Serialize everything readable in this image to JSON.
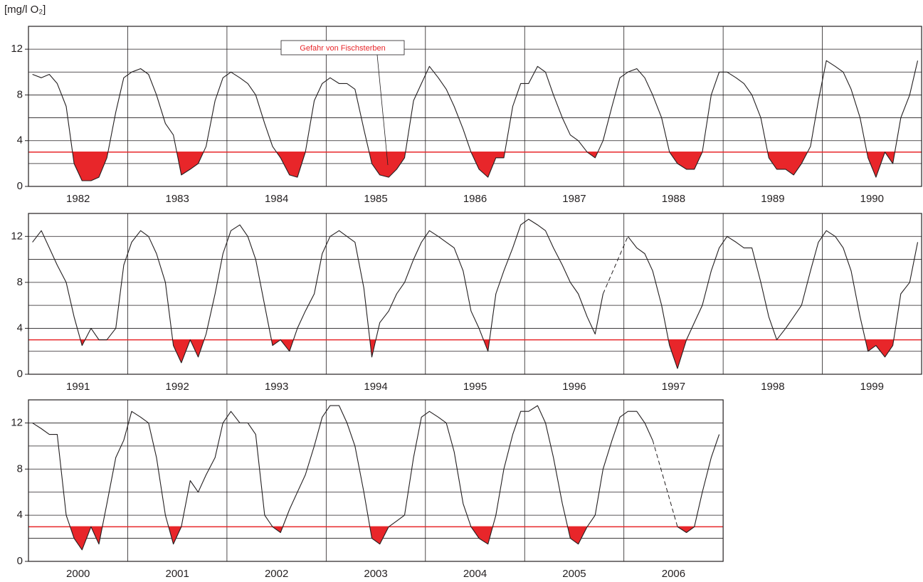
{
  "chart_data": [
    {
      "type": "line",
      "ylabel": "[mg/l O₂]",
      "annotation": "Gefahr von Fischsterben",
      "categories": [
        "1982",
        "1983",
        "1984",
        "1985",
        "1986",
        "1987",
        "1988",
        "1989",
        "1990"
      ],
      "xlim": [
        1982,
        1991
      ],
      "ylim": [
        0,
        14
      ],
      "yticks": [
        0,
        4,
        8,
        12
      ],
      "minor_yticks": [
        2,
        6,
        10
      ],
      "grid": true,
      "threshold": 3,
      "threshold_color": "#e8262a",
      "color": "#231f20",
      "x": [
        1982.04,
        1982.13,
        1982.21,
        1982.29,
        1982.38,
        1982.46,
        1982.54,
        1982.63,
        1982.71,
        1982.79,
        1982.88,
        1982.96,
        1983.04,
        1983.13,
        1983.21,
        1983.29,
        1983.38,
        1983.46,
        1983.54,
        1983.63,
        1983.71,
        1983.79,
        1983.88,
        1983.96,
        1984.04,
        1984.13,
        1984.21,
        1984.29,
        1984.38,
        1984.46,
        1984.54,
        1984.63,
        1984.71,
        1984.79,
        1984.88,
        1984.96,
        1985.04,
        1985.13,
        1985.21,
        1985.29,
        1985.38,
        1985.46,
        1985.54,
        1985.63,
        1985.71,
        1985.79,
        1985.88,
        1985.96,
        1986.04,
        1986.13,
        1986.21,
        1986.29,
        1986.38,
        1986.46,
        1986.54,
        1986.63,
        1986.71,
        1986.79,
        1986.88,
        1986.96,
        1987.04,
        1987.13,
        1987.21,
        1987.29,
        1987.38,
        1987.46,
        1987.54,
        1987.63,
        1987.71,
        1987.79,
        1987.88,
        1987.96,
        1988.04,
        1988.13,
        1988.21,
        1988.29,
        1988.38,
        1988.46,
        1988.54,
        1988.63,
        1988.71,
        1988.79,
        1988.88,
        1988.96,
        1989.04,
        1989.13,
        1989.21,
        1989.29,
        1989.38,
        1989.46,
        1989.54,
        1989.63,
        1989.71,
        1989.79,
        1989.88,
        1989.96,
        1990.04,
        1990.13,
        1990.21,
        1990.29,
        1990.38,
        1990.46,
        1990.54,
        1990.63,
        1990.71,
        1990.79,
        1990.88,
        1990.96
      ],
      "values": [
        9.8,
        9.5,
        9.8,
        9,
        7,
        2,
        0.5,
        0.5,
        0.8,
        2.5,
        6.5,
        9.5,
        10,
        10.3,
        9.8,
        8,
        5.5,
        4.5,
        1,
        1.5,
        2,
        3.5,
        7.5,
        9.5,
        10,
        9.5,
        9,
        8,
        5.5,
        3.5,
        2.5,
        1,
        0.8,
        3,
        7.5,
        9,
        9.5,
        9,
        9,
        8.5,
        5,
        2,
        1,
        0.8,
        1.5,
        2.5,
        7.5,
        9,
        10.5,
        9.5,
        8.5,
        7,
        5,
        3,
        1.5,
        0.8,
        2.5,
        2.5,
        7,
        9,
        9,
        10.5,
        10,
        8,
        6,
        4.5,
        4,
        3,
        2.5,
        4,
        7,
        9.5,
        10,
        10.3,
        9.5,
        8,
        6,
        3,
        2,
        1.5,
        1.5,
        3,
        8,
        10,
        10,
        9.5,
        9,
        8,
        6,
        2.5,
        1.5,
        1.5,
        1,
        2,
        3.5,
        7.5,
        11,
        10.5,
        10,
        8.5,
        6,
        2.5,
        0.8,
        3,
        2,
        6,
        8,
        11
      ]
    },
    {
      "type": "line",
      "categories": [
        "1991",
        "1992",
        "1993",
        "1994",
        "1995",
        "1996",
        "1997",
        "1998",
        "1999"
      ],
      "xlim": [
        1991,
        2000
      ],
      "ylim": [
        0,
        14
      ],
      "yticks": [
        0,
        4,
        8,
        12
      ],
      "minor_yticks": [
        2,
        6,
        10
      ],
      "grid": true,
      "threshold": 3,
      "threshold_color": "#e8262a",
      "color": "#231f20",
      "x": [
        1991.04,
        1991.13,
        1991.21,
        1991.29,
        1991.38,
        1991.46,
        1991.54,
        1991.63,
        1991.71,
        1991.79,
        1991.88,
        1991.96,
        1992.04,
        1992.13,
        1992.21,
        1992.29,
        1992.38,
        1992.46,
        1992.54,
        1992.63,
        1992.71,
        1992.79,
        1992.88,
        1992.96,
        1993.04,
        1993.13,
        1993.21,
        1993.29,
        1993.38,
        1993.46,
        1993.54,
        1993.63,
        1993.71,
        1993.79,
        1993.88,
        1993.96,
        1994.04,
        1994.13,
        1994.21,
        1994.29,
        1994.38,
        1994.46,
        1994.54,
        1994.63,
        1994.71,
        1994.79,
        1994.88,
        1994.96,
        1995.04,
        1995.13,
        1995.21,
        1995.29,
        1995.38,
        1995.46,
        1995.54,
        1995.63,
        1995.71,
        1995.79,
        1995.88,
        1995.96,
        1996.04,
        1996.13,
        1996.21,
        1996.29,
        1996.38,
        1996.46,
        1996.54,
        1996.63,
        1996.71,
        1996.79,
        1996.88,
        1996.96,
        1997.04,
        1997.13,
        1997.21,
        1997.29,
        1997.38,
        1997.46,
        1997.54,
        1997.63,
        1997.71,
        1997.79,
        1997.88,
        1997.96,
        1998.04,
        1998.13,
        1998.21,
        1998.29,
        1998.38,
        1998.46,
        1998.54,
        1998.63,
        1998.71,
        1998.79,
        1998.88,
        1998.96,
        1999.04,
        1999.13,
        1999.21,
        1999.29,
        1999.38,
        1999.46,
        1999.54,
        1999.63,
        1999.71,
        1999.79,
        1999.88,
        1999.96
      ],
      "values": [
        11.5,
        12.5,
        11,
        9.5,
        8,
        5,
        2.5,
        4,
        3,
        3,
        4,
        9.5,
        11.5,
        12.5,
        12,
        10.5,
        8,
        2.5,
        1,
        3,
        1.5,
        3.5,
        7,
        10.5,
        12.5,
        13,
        12,
        10,
        6,
        2.5,
        3,
        2,
        4,
        5.5,
        7,
        10.5,
        12,
        12.5,
        12,
        11.5,
        7.5,
        1.5,
        4.5,
        5.5,
        7,
        8,
        10,
        11.5,
        12.5,
        12,
        11.5,
        11,
        9,
        5.5,
        4,
        2,
        7,
        9,
        11,
        13,
        13.5,
        13,
        12.5,
        11,
        9.5,
        8,
        7,
        5,
        3.5,
        7,
        null,
        null,
        12,
        11,
        10.5,
        9,
        6,
        2.5,
        0.5,
        3,
        4.5,
        6,
        9,
        11,
        12,
        11.5,
        11,
        11,
        8,
        5,
        3,
        4,
        5,
        6,
        9,
        11.5,
        12.5,
        12,
        11,
        9,
        5,
        2,
        2.5,
        1.5,
        2.5,
        7,
        8,
        11.5
      ]
    },
    {
      "type": "line",
      "categories": [
        "2000",
        "2001",
        "2002",
        "2003",
        "2004",
        "2005",
        "2006"
      ],
      "xlim": [
        2000,
        2007
      ],
      "ylim": [
        0,
        14
      ],
      "yticks": [
        0,
        4,
        8,
        12
      ],
      "minor_yticks": [
        2,
        6,
        10
      ],
      "grid": true,
      "threshold": 3,
      "threshold_color": "#e8262a",
      "color": "#231f20",
      "x": [
        2000.04,
        2000.13,
        2000.21,
        2000.29,
        2000.38,
        2000.46,
        2000.54,
        2000.63,
        2000.71,
        2000.79,
        2000.88,
        2000.96,
        2001.04,
        2001.13,
        2001.21,
        2001.29,
        2001.38,
        2001.46,
        2001.54,
        2001.63,
        2001.71,
        2001.79,
        2001.88,
        2001.96,
        2002.04,
        2002.13,
        2002.21,
        2002.29,
        2002.38,
        2002.46,
        2002.54,
        2002.63,
        2002.71,
        2002.79,
        2002.88,
        2002.96,
        2003.04,
        2003.13,
        2003.21,
        2003.29,
        2003.38,
        2003.46,
        2003.54,
        2003.63,
        2003.71,
        2003.79,
        2003.88,
        2003.96,
        2004.04,
        2004.13,
        2004.21,
        2004.29,
        2004.38,
        2004.46,
        2004.54,
        2004.63,
        2004.71,
        2004.79,
        2004.88,
        2004.96,
        2005.04,
        2005.13,
        2005.21,
        2005.29,
        2005.38,
        2005.46,
        2005.54,
        2005.63,
        2005.71,
        2005.79,
        2005.88,
        2005.96,
        2006.04,
        2006.13,
        2006.21,
        2006.29,
        2006.38,
        2006.46,
        2006.54,
        2006.63,
        2006.71,
        2006.79,
        2006.88,
        2006.96
      ],
      "values": [
        12,
        11.5,
        11,
        11,
        4,
        2,
        1,
        3,
        1.5,
        5,
        9,
        10.5,
        13,
        12.5,
        12,
        9,
        4,
        1.5,
        3,
        7,
        6,
        7.5,
        9,
        12,
        13,
        12,
        12,
        11,
        4,
        3,
        2.5,
        4.5,
        6,
        7.5,
        10,
        12.5,
        13.5,
        13.5,
        12,
        10,
        6,
        2,
        1.5,
        3,
        3.5,
        4,
        9,
        12.5,
        13,
        12.5,
        12,
        9.5,
        5,
        3,
        2,
        1.5,
        4,
        8,
        11,
        13,
        13,
        13.5,
        12,
        9,
        5,
        2,
        1.5,
        3,
        4,
        8,
        10.5,
        12.5,
        13,
        13,
        12,
        10.5,
        null,
        null,
        3,
        2.5,
        3,
        6,
        9,
        11
      ]
    }
  ]
}
